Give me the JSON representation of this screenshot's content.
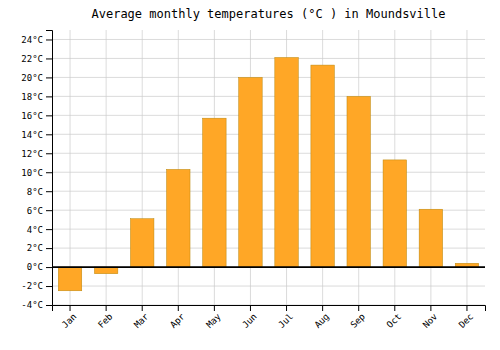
{
  "chart_data": {
    "type": "bar",
    "title": "Average monthly temperatures (°C ) in Moundsville",
    "categories": [
      "Jan",
      "Feb",
      "Mar",
      "Apr",
      "May",
      "Jun",
      "Jul",
      "Aug",
      "Sep",
      "Oct",
      "Nov",
      "Dec"
    ],
    "values": [
      -2.5,
      -0.7,
      5.1,
      10.3,
      15.7,
      20.0,
      22.1,
      21.3,
      18.0,
      11.3,
      6.1,
      0.4
    ],
    "color": "#FFA726",
    "ylim": [
      -4,
      25
    ],
    "yticks": [
      {
        "value": -4,
        "label": "-4°C"
      },
      {
        "value": -2,
        "label": "-2°C"
      },
      {
        "value": 0,
        "label": "0°C"
      },
      {
        "value": 2,
        "label": "2°C"
      },
      {
        "value": 4,
        "label": "4°C"
      },
      {
        "value": 6,
        "label": "6°C"
      },
      {
        "value": 8,
        "label": "8°C"
      },
      {
        "value": 10,
        "label": "10°C"
      },
      {
        "value": 12,
        "label": "12°C"
      },
      {
        "value": 14,
        "label": "14°C"
      },
      {
        "value": 16,
        "label": "16°C"
      },
      {
        "value": 18,
        "label": "18°C"
      },
      {
        "value": 20,
        "label": "20°C"
      },
      {
        "value": 22,
        "label": "22°C"
      },
      {
        "value": 24,
        "label": "24°C"
      }
    ],
    "grid": true
  }
}
